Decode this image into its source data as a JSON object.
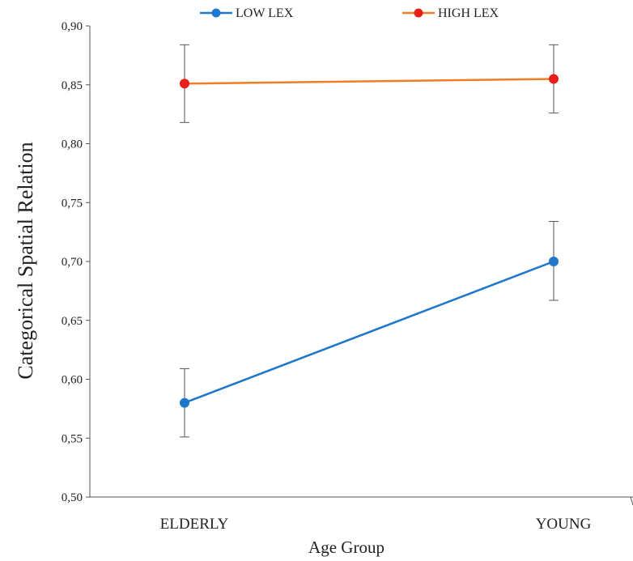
{
  "chart_data": {
    "type": "line",
    "categories": [
      "ELDERLY",
      "YOUNG"
    ],
    "series": [
      {
        "name": "LOW LEX",
        "values": [
          0.58,
          0.7
        ],
        "error_low": [
          0.551,
          0.667
        ],
        "error_high": [
          0.609,
          0.734
        ],
        "color": "#1f77c9"
      },
      {
        "name": "HIGH LEX",
        "values": [
          0.851,
          0.855
        ],
        "error_low": [
          0.818,
          0.826
        ],
        "error_high": [
          0.884,
          0.884
        ],
        "color": "#f07d24",
        "marker_color": "#e8201a"
      }
    ],
    "xlabel": "Age Group",
    "ylabel": "Categorical Spatial Relation",
    "ylim": [
      0.5,
      0.9
    ],
    "yticks": [
      "0,50",
      "0,55",
      "0,60",
      "0,65",
      "0,70",
      "0,75",
      "0,80",
      "0,85",
      "0,90"
    ],
    "ytick_values": [
      0.5,
      0.55,
      0.6,
      0.65,
      0.7,
      0.75,
      0.8,
      0.85,
      0.9
    ],
    "grid": false,
    "legend_position": "top"
  }
}
